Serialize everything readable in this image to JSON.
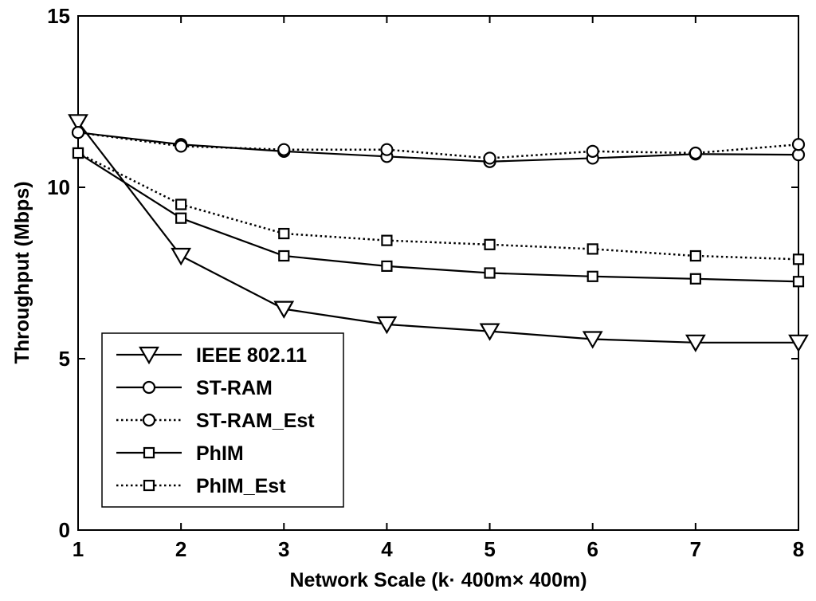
{
  "chart_data": {
    "type": "line",
    "title": "",
    "xlabel": "Network Scale (k· 400m× 400m)",
    "ylabel": "Throughput (Mbps)",
    "xlim": [
      1,
      8
    ],
    "ylim": [
      0,
      15
    ],
    "xticks": [
      "1",
      "2",
      "3",
      "4",
      "5",
      "6",
      "7",
      "8"
    ],
    "yticks": [
      "0",
      "5",
      "10",
      "15"
    ],
    "grid": false,
    "legend_position": "bottom-left",
    "x": [
      1,
      2,
      3,
      4,
      5,
      6,
      7,
      8
    ],
    "series": [
      {
        "name": "IEEE 802.11",
        "marker": "triangle-down",
        "line": "solid",
        "values": [
          11.9,
          8.0,
          6.45,
          6.0,
          5.8,
          5.57,
          5.47,
          5.47
        ]
      },
      {
        "name": "ST-RAM",
        "marker": "circle",
        "line": "solid",
        "values": [
          11.6,
          11.25,
          11.05,
          10.9,
          10.75,
          10.85,
          10.97,
          10.95
        ]
      },
      {
        "name": "ST-RAM_Est",
        "marker": "circle",
        "line": "dotted",
        "values": [
          11.6,
          11.2,
          11.1,
          11.1,
          10.85,
          11.05,
          11.0,
          11.25
        ]
      },
      {
        "name": "PhIM",
        "marker": "square",
        "line": "solid",
        "values": [
          11.0,
          9.1,
          8.0,
          7.7,
          7.5,
          7.4,
          7.33,
          7.25
        ]
      },
      {
        "name": "PhIM_Est",
        "marker": "square",
        "line": "dotted",
        "values": [
          11.0,
          9.5,
          8.65,
          8.45,
          8.33,
          8.2,
          8.0,
          7.9
        ]
      }
    ]
  }
}
